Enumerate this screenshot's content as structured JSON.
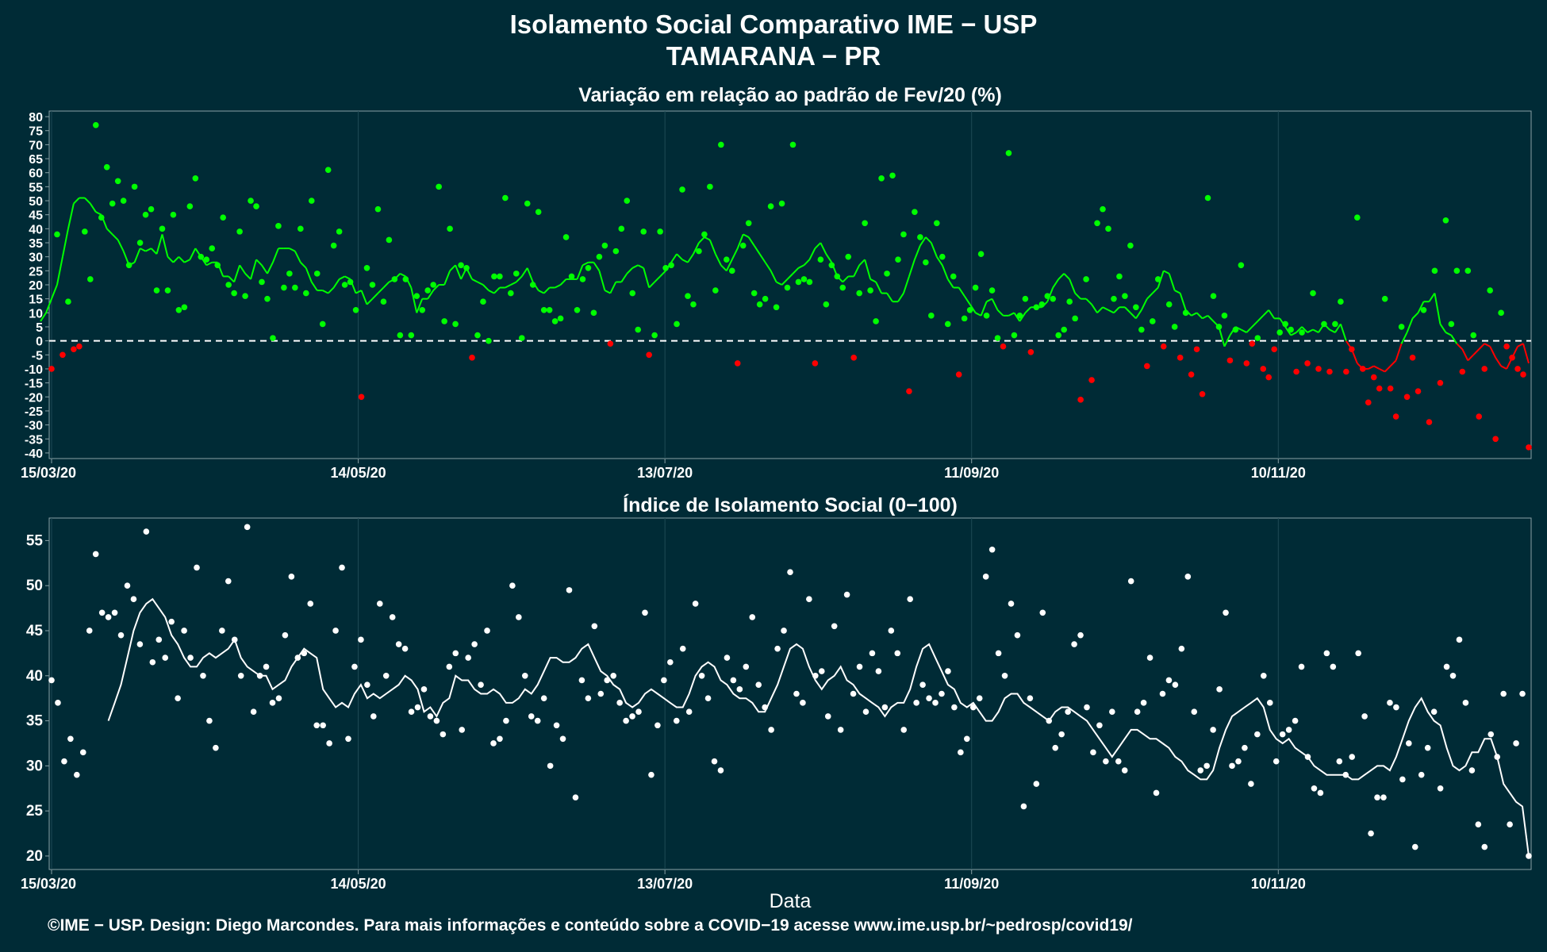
{
  "header": {
    "title_line1": "Isolamento Social Comparativo IME − USP",
    "title_line2": "TAMARANA − PR"
  },
  "footer": {
    "text": "©IME − USP. Design: Diego Marcondes. Para mais informações e conteúdo sobre a COVID−19 acesse www.ime.usp.br/~pedrosp/covid19/"
  },
  "colors": {
    "background": "#002b36",
    "positive": "#00ff00",
    "negative": "#ff0000",
    "index": "#ffffff",
    "grid": "#1e4a55"
  },
  "chart_data": [
    {
      "type": "scatter",
      "title": "Variação em relação ao padrão de Fev/20 (%)",
      "xlabel": "",
      "ylabel": "",
      "x_start": "15/03/20",
      "x_end": "29/12/20",
      "x_tick_labels": [
        "15/03/20",
        "14/05/20",
        "13/07/20",
        "11/09/20",
        "10/11/20"
      ],
      "y_ticks": [
        80,
        75,
        70,
        65,
        60,
        55,
        50,
        45,
        40,
        35,
        30,
        25,
        20,
        15,
        10,
        5,
        0,
        -5,
        -10,
        -15,
        -20,
        -25,
        -30,
        -35,
        -40
      ],
      "ylim": [
        -42,
        82
      ],
      "reference_line": 0,
      "series": [
        {
          "values": [
            -10,
            38,
            -5,
            14,
            -3,
            -2,
            39,
            22,
            77,
            44,
            62,
            49,
            57,
            50,
            27,
            55,
            35,
            45,
            47,
            18,
            40,
            18,
            45,
            11,
            12,
            48,
            58,
            30,
            29,
            33,
            27,
            44,
            20,
            17,
            39,
            16,
            50,
            48,
            21,
            15,
            1,
            41,
            19,
            24,
            19,
            40,
            17,
            50,
            24,
            6,
            61,
            34,
            39,
            20,
            21,
            11,
            -20,
            26,
            20,
            47,
            14,
            36,
            22,
            2,
            22,
            2,
            16,
            11,
            18,
            20,
            55,
            7,
            40,
            6,
            27,
            26,
            -6,
            2,
            14,
            0,
            23,
            23,
            51,
            17,
            24,
            1,
            49,
            20,
            46,
            11,
            11,
            7,
            8,
            37,
            23,
            11,
            22,
            26,
            10,
            30,
            34,
            -1,
            32,
            40,
            50,
            17,
            4,
            39,
            -5,
            2,
            39,
            26,
            27,
            6,
            54,
            16,
            13,
            32,
            38,
            55,
            18,
            70,
            29,
            25,
            -8,
            34,
            42,
            17,
            13,
            15,
            48,
            12,
            49,
            19,
            70,
            21,
            22,
            21,
            -8,
            29,
            13,
            27,
            23,
            19,
            30,
            -6,
            17,
            42,
            18,
            7,
            58,
            24,
            59,
            29,
            38,
            -18,
            46,
            37,
            28,
            9,
            42,
            30,
            6,
            23,
            -12,
            8,
            11,
            19,
            31,
            9,
            18,
            1,
            -2,
            67,
            2,
            9,
            15,
            -4,
            12,
            13,
            16,
            15,
            2,
            4,
            14,
            8,
            -21,
            22,
            -14,
            42,
            47,
            40,
            15,
            23,
            16,
            34,
            12,
            4,
            -9,
            7,
            22,
            -2,
            13,
            5,
            -6,
            10,
            -12,
            -3,
            -19,
            51,
            16,
            5,
            9,
            -7,
            4,
            27,
            -8,
            -1,
            1,
            -10,
            -13,
            -3,
            3,
            6,
            4,
            -11,
            3,
            -8,
            17,
            -10,
            6,
            -11,
            6,
            14,
            -11,
            -3,
            44,
            -10,
            -22,
            -13,
            -17,
            15,
            -17,
            -27,
            5,
            -20,
            -6,
            -18,
            11,
            -29,
            25,
            -15,
            43,
            6,
            25,
            -11,
            25,
            2,
            -27,
            -10,
            18,
            -35,
            10,
            -2,
            -6,
            -10,
            -12,
            -38
          ]
        },
        {
          "values": [
            7,
            10,
            15,
            20,
            30,
            40,
            49,
            51,
            51,
            49,
            46,
            45,
            40,
            38,
            36,
            32,
            27,
            28,
            33,
            32,
            33,
            31,
            38,
            30,
            28,
            30,
            28,
            29,
            33,
            30,
            27,
            28,
            28,
            23,
            23,
            21,
            27,
            24,
            22,
            29,
            27,
            24,
            28,
            33,
            33,
            33,
            32,
            28,
            26,
            21,
            18,
            18,
            17,
            19,
            22,
            23,
            22,
            17,
            18,
            13,
            15,
            17,
            19,
            21,
            22,
            24,
            23,
            19,
            10,
            15,
            15,
            18,
            20,
            20,
            25,
            27,
            22,
            26,
            22,
            21,
            20,
            18,
            17,
            19,
            19,
            20,
            21,
            23,
            26,
            21,
            18,
            17,
            19,
            19,
            20,
            22,
            22,
            22,
            27,
            28,
            28,
            25,
            18,
            17,
            21,
            21,
            24,
            26,
            27,
            26,
            19,
            21,
            23,
            25,
            28,
            31,
            29,
            28,
            31,
            35,
            37,
            36,
            31,
            27,
            25,
            29,
            33,
            38,
            37,
            34,
            31,
            28,
            25,
            21,
            20,
            22,
            24,
            26,
            27,
            29,
            33,
            35,
            31,
            28,
            23,
            21,
            23,
            23,
            27,
            29,
            22,
            21,
            17,
            17,
            14,
            14,
            17,
            23,
            29,
            34,
            37,
            35,
            30,
            27,
            22,
            19,
            19,
            16,
            13,
            10,
            9,
            14,
            15,
            11,
            9,
            9,
            10,
            7,
            10,
            12,
            12,
            12,
            14,
            19,
            22,
            24,
            22,
            17,
            15,
            15,
            13,
            10,
            12,
            11,
            10,
            12,
            12,
            10,
            8,
            11,
            15,
            17,
            19,
            25,
            24,
            18,
            17,
            11,
            9,
            10,
            8,
            9,
            7,
            5,
            -2,
            2,
            5,
            4,
            3,
            5,
            7,
            9,
            11,
            8,
            8,
            5,
            2,
            3,
            5,
            3,
            4,
            3,
            6,
            4,
            3,
            6,
            0,
            -3,
            -8,
            -10,
            -10,
            -9,
            -10,
            -11,
            -9,
            -7,
            -1,
            3,
            8,
            10,
            14,
            14,
            17,
            6,
            3,
            2,
            -1,
            -3,
            -7,
            -5,
            -3,
            -1,
            -2,
            -6,
            -9,
            -10,
            -6,
            -2,
            -1,
            -8
          ]
        }
      ]
    },
    {
      "type": "scatter",
      "title": "Índice de Isolamento Social (0−100)",
      "xlabel": "Data",
      "ylabel": "",
      "x_start": "15/03/20",
      "x_end": "29/12/20",
      "x_tick_labels": [
        "15/03/20",
        "14/05/20",
        "13/07/20",
        "11/09/20",
        "10/11/20"
      ],
      "y_ticks": [
        55,
        50,
        45,
        40,
        35,
        30,
        25,
        20
      ],
      "ylim": [
        18.5,
        57.5
      ],
      "series": [
        {
          "values": [
            39.5,
            37,
            30.5,
            33,
            29,
            31.5,
            45,
            53.5,
            47,
            46.5,
            47,
            44.5,
            50,
            48.5,
            43.5,
            56,
            41.5,
            44,
            42,
            46,
            37.5,
            45,
            42,
            52,
            40,
            35,
            32,
            45,
            50.5,
            44,
            40,
            56.5,
            36,
            40,
            41,
            37,
            37.5,
            44.5,
            51,
            42,
            42.5,
            48,
            34.5,
            34.5,
            32.5,
            45,
            52,
            33,
            41,
            44,
            39,
            35.5,
            48,
            40,
            46.5,
            43.5,
            43,
            36,
            36.5,
            38.5,
            35.5,
            35,
            33.5,
            41,
            42.5,
            34,
            42,
            43.5,
            39,
            45,
            32.5,
            33,
            35,
            50,
            46.5,
            40,
            35.5,
            35,
            37.5,
            30,
            34.5,
            33,
            49.5,
            26.5,
            39.5,
            37.5,
            45.5,
            38,
            39.5,
            40,
            37,
            35,
            35.5,
            36,
            47,
            29,
            34.5,
            39.5,
            41.5,
            35,
            43,
            36,
            48,
            40,
            37.5,
            30.5,
            29.5,
            42,
            39.5,
            38.5,
            41,
            46.5,
            39,
            36.5,
            34,
            43,
            45,
            51.5,
            38,
            37,
            48.5,
            40,
            40.5,
            35.5,
            45.5,
            34,
            49,
            38,
            41,
            36,
            42.5,
            40.5,
            36.5,
            45,
            42.5,
            34,
            48.5,
            37,
            39,
            37.5,
            37,
            38,
            40.5,
            36.5,
            31.5,
            33,
            36.5,
            37.5,
            51,
            54,
            42.5,
            40,
            48,
            44.5,
            25.5,
            37.5,
            28,
            47,
            35,
            32,
            33.5,
            36,
            43.5,
            44.5,
            36.5,
            31.5,
            34.5,
            30.5,
            36,
            30.5,
            29.5,
            50.5,
            36,
            37,
            42,
            27,
            38,
            39.5,
            39,
            43,
            51,
            36,
            29.5,
            30,
            34,
            38.5,
            47,
            30,
            30.5,
            32,
            28,
            33.5,
            40,
            37,
            30.5,
            33.5,
            34,
            35,
            41,
            31,
            27.5,
            27,
            42.5,
            41,
            30.5,
            29,
            31,
            42.5,
            35.5,
            22.5,
            26.5,
            26.5,
            37,
            36.5,
            28.5,
            32.5,
            21,
            29,
            32,
            36,
            27.5,
            41,
            40,
            44,
            37,
            29.5,
            23.5,
            21,
            33.5,
            31,
            38,
            23.5,
            32.5,
            38,
            20
          ]
        },
        {
          "values": [
            35,
            37,
            39,
            42,
            45,
            47,
            48,
            48.5,
            47.5,
            46.5,
            44.5,
            43.5,
            42,
            41,
            41,
            42,
            42.5,
            42,
            42.5,
            43,
            44,
            42,
            41,
            40.5,
            40,
            40,
            38.5,
            39,
            39.5,
            41,
            42,
            43,
            42.5,
            42,
            38.5,
            37.5,
            36.5,
            37,
            36.5,
            38,
            39,
            37.5,
            38,
            37.5,
            38,
            38.5,
            39,
            40,
            39.5,
            38.5,
            36,
            36.5,
            35.5,
            37,
            37.5,
            40,
            39.5,
            39.5,
            38.5,
            38,
            38,
            38.5,
            38,
            37,
            37,
            37.5,
            38.5,
            38,
            39,
            40.5,
            42,
            42,
            41.5,
            41.5,
            42,
            43,
            43.5,
            42,
            40.5,
            40,
            39,
            38.5,
            37,
            36.5,
            37,
            38,
            38.5,
            38,
            37.5,
            37,
            36.5,
            36.5,
            38,
            40,
            41,
            41.5,
            41,
            39.5,
            39,
            38,
            37.5,
            37.5,
            37,
            36,
            36,
            37.5,
            39,
            41,
            43,
            43.5,
            43,
            41,
            39.5,
            38.5,
            39.5,
            40,
            41,
            39.5,
            39,
            38,
            37.5,
            37,
            36.5,
            35.5,
            36.5,
            37,
            37,
            38.5,
            41,
            43,
            43.5,
            42,
            40.5,
            39,
            38.5,
            37,
            36.5,
            37,
            36,
            35,
            35,
            36,
            37.5,
            38,
            38,
            37,
            36.5,
            36,
            35.5,
            35,
            36,
            36.5,
            36.5,
            36,
            35.5,
            35,
            34,
            33,
            32,
            31,
            32,
            33,
            34,
            34,
            33.5,
            33,
            33,
            32.5,
            32,
            31,
            30.5,
            29.5,
            29,
            28.5,
            28.5,
            29.5,
            32,
            34,
            35.5,
            36,
            36.5,
            37,
            37.5,
            36.5,
            34,
            33,
            32.5,
            33,
            32,
            31.5,
            31,
            30,
            29.5,
            29,
            29,
            29,
            29,
            28.5,
            28.5,
            29,
            29.5,
            30,
            30,
            29.5,
            31,
            33,
            35,
            36.5,
            37.5,
            36,
            35,
            34.5,
            32,
            30,
            29.5,
            30,
            31.5,
            31.5,
            33,
            33,
            31,
            28,
            27,
            26,
            25.5,
            20
          ]
        }
      ]
    }
  ]
}
